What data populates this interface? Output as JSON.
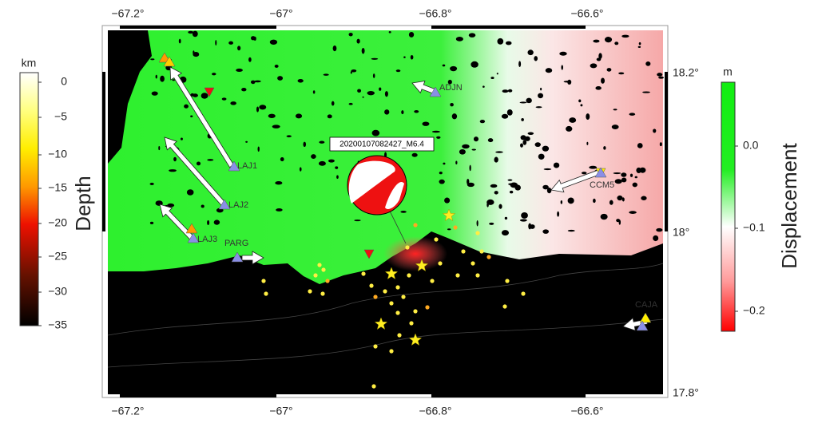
{
  "map": {
    "top_ticks": [
      "−67.2°",
      "−67°",
      "−66.8°",
      "−66.6°"
    ],
    "bottom_ticks": [
      "−67.2°",
      "−67°",
      "−66.8°",
      "−66.6°"
    ],
    "right_ticks": [
      "18.2°",
      "18°",
      "17.8°"
    ],
    "stations": [
      {
        "label": "LAJ1"
      },
      {
        "label": "LAJ2"
      },
      {
        "label": "LAJ3"
      },
      {
        "label": "PARG"
      },
      {
        "label": "ADJN"
      },
      {
        "label": "CCM5"
      },
      {
        "label": "CAJA"
      }
    ],
    "event_label": "20200107082427_M6.4"
  },
  "depth_bar": {
    "unit": "km",
    "title": "Depth",
    "ticks": [
      "0",
      "−5",
      "−10",
      "−15",
      "−20",
      "−25",
      "−30",
      "−35"
    ]
  },
  "displacement_bar": {
    "unit": "m",
    "title": "Displacement",
    "ticks": [
      "0.0",
      "−0.1",
      "−0.2"
    ]
  }
}
